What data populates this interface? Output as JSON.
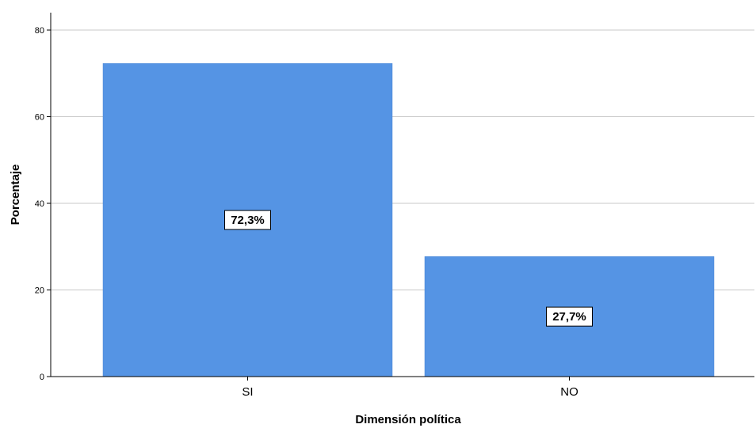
{
  "chart_data": {
    "type": "bar",
    "categories": [
      "SI",
      "NO"
    ],
    "values": [
      72.3,
      27.7
    ],
    "data_labels": [
      "72,3%",
      "27,7%"
    ],
    "xlabel": "Dimensión política",
    "ylabel": "Porcentaje",
    "ylim": [
      0,
      84
    ],
    "yticks": [
      0,
      20,
      40,
      60,
      80
    ],
    "grid": true,
    "bar_color": "#5594e4",
    "legend": "none"
  }
}
